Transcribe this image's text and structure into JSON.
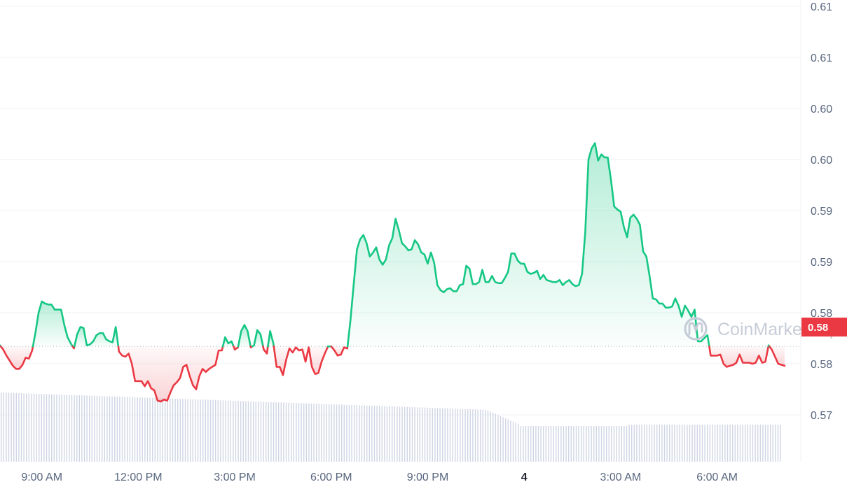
{
  "chart_data": {
    "type": "line",
    "baseline": 0.5817,
    "last_price_label": "0.58",
    "watermark": "CoinMarketCap",
    "y_ticks": [
      {
        "value": 0.615,
        "label": "0.61"
      },
      {
        "value": 0.61,
        "label": "0.61"
      },
      {
        "value": 0.605,
        "label": "0.60"
      },
      {
        "value": 0.6,
        "label": "0.60"
      },
      {
        "value": 0.595,
        "label": "0.59"
      },
      {
        "value": 0.59,
        "label": "0.59"
      },
      {
        "value": 0.585,
        "label": "0.58"
      },
      {
        "value": 0.58,
        "label": "0.58"
      },
      {
        "value": 0.575,
        "label": "0.57"
      }
    ],
    "x_ticks": [
      {
        "t": 1.1,
        "label": "9:00 AM",
        "bold": false
      },
      {
        "t": 4.1,
        "label": "12:00 PM",
        "bold": false
      },
      {
        "t": 7.1,
        "label": "3:00 PM",
        "bold": false
      },
      {
        "t": 10.1,
        "label": "6:00 PM",
        "bold": false
      },
      {
        "t": 13.1,
        "label": "9:00 PM",
        "bold": false
      },
      {
        "t": 16.1,
        "label": "4",
        "bold": true
      },
      {
        "t": 19.1,
        "label": "3:00 AM",
        "bold": false
      },
      {
        "t": 22.1,
        "label": "6:00 AM",
        "bold": false
      }
    ],
    "x_range": [
      -0.2,
      24.2
    ],
    "y_range": [
      0.5722,
      0.6158
    ],
    "series": [
      {
        "values": [
          [
            -0.2,
            0.5818
          ],
          [
            -0.1,
            0.5814
          ],
          [
            0.0,
            0.5808
          ],
          [
            0.1,
            0.5803
          ],
          [
            0.2,
            0.5798
          ],
          [
            0.3,
            0.5795
          ],
          [
            0.4,
            0.5795
          ],
          [
            0.5,
            0.5799
          ],
          [
            0.6,
            0.5806
          ],
          [
            0.7,
            0.5805
          ],
          [
            0.8,
            0.5813
          ],
          [
            0.9,
            0.583
          ],
          [
            1.0,
            0.585
          ],
          [
            1.1,
            0.5861
          ],
          [
            1.2,
            0.5859
          ],
          [
            1.3,
            0.5858
          ],
          [
            1.4,
            0.5858
          ],
          [
            1.5,
            0.5853
          ],
          [
            1.6,
            0.5853
          ],
          [
            1.7,
            0.5853
          ],
          [
            1.8,
            0.5838
          ],
          [
            1.9,
            0.5826
          ],
          [
            2.0,
            0.582
          ],
          [
            2.1,
            0.5815
          ],
          [
            2.2,
            0.5829
          ],
          [
            2.3,
            0.5836
          ],
          [
            2.4,
            0.5835
          ],
          [
            2.5,
            0.5818
          ],
          [
            2.6,
            0.5819
          ],
          [
            2.7,
            0.5822
          ],
          [
            2.8,
            0.5828
          ],
          [
            2.9,
            0.583
          ],
          [
            3.0,
            0.583
          ],
          [
            3.1,
            0.5824
          ],
          [
            3.2,
            0.5822
          ],
          [
            3.3,
            0.5821
          ],
          [
            3.4,
            0.5836
          ],
          [
            3.5,
            0.5812
          ],
          [
            3.6,
            0.5808
          ],
          [
            3.7,
            0.5807
          ],
          [
            3.8,
            0.581
          ],
          [
            3.9,
            0.58
          ],
          [
            4.0,
            0.5783
          ],
          [
            4.1,
            0.5783
          ],
          [
            4.2,
            0.5783
          ],
          [
            4.3,
            0.5778
          ],
          [
            4.4,
            0.5783
          ],
          [
            4.5,
            0.5776
          ],
          [
            4.6,
            0.5774
          ],
          [
            4.7,
            0.5764
          ],
          [
            4.8,
            0.5763
          ],
          [
            4.9,
            0.5765
          ],
          [
            5.0,
            0.5764
          ],
          [
            5.1,
            0.5772
          ],
          [
            5.2,
            0.5779
          ],
          [
            5.3,
            0.5782
          ],
          [
            5.4,
            0.5786
          ],
          [
            5.5,
            0.5797
          ],
          [
            5.6,
            0.5799
          ],
          [
            5.7,
            0.5788
          ],
          [
            5.8,
            0.5779
          ],
          [
            5.9,
            0.5775
          ],
          [
            6.0,
            0.5788
          ],
          [
            6.1,
            0.5795
          ],
          [
            6.2,
            0.5792
          ],
          [
            6.3,
            0.5795
          ],
          [
            6.4,
            0.5797
          ],
          [
            6.5,
            0.5799
          ],
          [
            6.6,
            0.5813
          ],
          [
            6.7,
            0.5813
          ],
          [
            6.8,
            0.5826
          ],
          [
            6.9,
            0.582
          ],
          [
            7.0,
            0.5822
          ],
          [
            7.1,
            0.5814
          ],
          [
            7.2,
            0.5816
          ],
          [
            7.3,
            0.5832
          ],
          [
            7.4,
            0.5838
          ],
          [
            7.5,
            0.5832
          ],
          [
            7.6,
            0.5816
          ],
          [
            7.7,
            0.5818
          ],
          [
            7.8,
            0.5833
          ],
          [
            7.9,
            0.5829
          ],
          [
            8.0,
            0.5814
          ],
          [
            8.1,
            0.581
          ],
          [
            8.2,
            0.5832
          ],
          [
            8.3,
            0.582
          ],
          [
            8.4,
            0.5797
          ],
          [
            8.5,
            0.5797
          ],
          [
            8.6,
            0.5789
          ],
          [
            8.7,
            0.5804
          ],
          [
            8.8,
            0.5815
          ],
          [
            8.9,
            0.5811
          ],
          [
            9.0,
            0.5816
          ],
          [
            9.1,
            0.5813
          ],
          [
            9.2,
            0.5814
          ],
          [
            9.3,
            0.5802
          ],
          [
            9.4,
            0.5816
          ],
          [
            9.5,
            0.5797
          ],
          [
            9.6,
            0.579
          ],
          [
            9.7,
            0.5791
          ],
          [
            9.8,
            0.5802
          ],
          [
            9.9,
            0.581
          ],
          [
            10.0,
            0.5817
          ],
          [
            10.1,
            0.5817
          ],
          [
            10.2,
            0.5813
          ],
          [
            10.3,
            0.5808
          ],
          [
            10.4,
            0.5809
          ],
          [
            10.5,
            0.5816
          ],
          [
            10.6,
            0.5815
          ],
          [
            10.7,
            0.5843
          ],
          [
            10.8,
            0.5878
          ],
          [
            10.9,
            0.5912
          ],
          [
            11.0,
            0.5922
          ],
          [
            11.1,
            0.5926
          ],
          [
            11.2,
            0.5918
          ],
          [
            11.3,
            0.5905
          ],
          [
            11.4,
            0.5909
          ],
          [
            11.5,
            0.5914
          ],
          [
            11.6,
            0.5902
          ],
          [
            11.7,
            0.5897
          ],
          [
            11.8,
            0.5902
          ],
          [
            11.9,
            0.5916
          ],
          [
            12.0,
            0.5923
          ],
          [
            12.1,
            0.5942
          ],
          [
            12.2,
            0.5931
          ],
          [
            12.3,
            0.5918
          ],
          [
            12.4,
            0.5915
          ],
          [
            12.5,
            0.5911
          ],
          [
            12.6,
            0.5912
          ],
          [
            12.7,
            0.5921
          ],
          [
            12.8,
            0.5917
          ],
          [
            12.9,
            0.5909
          ],
          [
            13.0,
            0.5907
          ],
          [
            13.1,
            0.5898
          ],
          [
            13.2,
            0.5909
          ],
          [
            13.3,
            0.5899
          ],
          [
            13.4,
            0.5877
          ],
          [
            13.5,
            0.5872
          ],
          [
            13.6,
            0.587
          ],
          [
            13.7,
            0.5873
          ],
          [
            13.8,
            0.5874
          ],
          [
            13.9,
            0.5871
          ],
          [
            14.0,
            0.5871
          ],
          [
            14.1,
            0.5877
          ],
          [
            14.2,
            0.5878
          ],
          [
            14.3,
            0.5896
          ],
          [
            14.4,
            0.5893
          ],
          [
            14.5,
            0.5878
          ],
          [
            14.6,
            0.5878
          ],
          [
            14.7,
            0.588
          ],
          [
            14.8,
            0.5892
          ],
          [
            14.9,
            0.588
          ],
          [
            15.0,
            0.588
          ],
          [
            15.1,
            0.5886
          ],
          [
            15.2,
            0.588
          ],
          [
            15.3,
            0.5879
          ],
          [
            15.4,
            0.5879
          ],
          [
            15.5,
            0.5884
          ],
          [
            15.6,
            0.589
          ],
          [
            15.7,
            0.5908
          ],
          [
            15.8,
            0.5908
          ],
          [
            15.9,
            0.5901
          ],
          [
            16.0,
            0.5898
          ],
          [
            16.1,
            0.5898
          ],
          [
            16.2,
            0.589
          ],
          [
            16.3,
            0.5888
          ],
          [
            16.4,
            0.5889
          ],
          [
            16.5,
            0.5891
          ],
          [
            16.6,
            0.5883
          ],
          [
            16.7,
            0.5887
          ],
          [
            16.8,
            0.5882
          ],
          [
            16.9,
            0.5881
          ],
          [
            17.0,
            0.588
          ],
          [
            17.1,
            0.588
          ],
          [
            17.2,
            0.5882
          ],
          [
            17.3,
            0.5877
          ],
          [
            17.4,
            0.588
          ],
          [
            17.5,
            0.5882
          ],
          [
            17.6,
            0.5878
          ],
          [
            17.7,
            0.5876
          ],
          [
            17.8,
            0.5877
          ],
          [
            17.9,
            0.5888
          ],
          [
            18.0,
            0.5929
          ],
          [
            18.1,
            0.6
          ],
          [
            18.2,
            0.6011
          ],
          [
            18.3,
            0.6016
          ],
          [
            18.4,
            0.5999
          ],
          [
            18.5,
            0.6005
          ],
          [
            18.6,
            0.6002
          ],
          [
            18.7,
            0.6002
          ],
          [
            18.8,
            0.598
          ],
          [
            18.9,
            0.5954
          ],
          [
            19.0,
            0.5951
          ],
          [
            19.1,
            0.5949
          ],
          [
            19.2,
            0.5934
          ],
          [
            19.3,
            0.5924
          ],
          [
            19.4,
            0.5943
          ],
          [
            19.5,
            0.5946
          ],
          [
            19.6,
            0.5942
          ],
          [
            19.7,
            0.5936
          ],
          [
            19.8,
            0.591
          ],
          [
            19.9,
            0.5905
          ],
          [
            20.0,
            0.5886
          ],
          [
            20.1,
            0.5864
          ],
          [
            20.2,
            0.5863
          ],
          [
            20.3,
            0.5859
          ],
          [
            20.4,
            0.5859
          ],
          [
            20.5,
            0.5855
          ],
          [
            20.6,
            0.5855
          ],
          [
            20.7,
            0.5856
          ],
          [
            20.8,
            0.5864
          ],
          [
            20.9,
            0.5857
          ],
          [
            21.0,
            0.5846
          ],
          [
            21.1,
            0.5857
          ],
          [
            21.2,
            0.5852
          ],
          [
            21.3,
            0.5846
          ],
          [
            21.4,
            0.5853
          ],
          [
            21.5,
            0.5822
          ],
          [
            21.6,
            0.5822
          ],
          [
            21.7,
            0.5825
          ],
          [
            21.8,
            0.5828
          ],
          [
            21.9,
            0.5808
          ],
          [
            22.0,
            0.5808
          ],
          [
            22.1,
            0.5808
          ],
          [
            22.2,
            0.5809
          ],
          [
            22.3,
            0.58
          ],
          [
            22.4,
            0.5797
          ],
          [
            22.5,
            0.5798
          ],
          [
            22.6,
            0.5799
          ],
          [
            22.7,
            0.5801
          ],
          [
            22.8,
            0.5809
          ],
          [
            22.9,
            0.5801
          ],
          [
            23.0,
            0.5801
          ],
          [
            23.1,
            0.5801
          ],
          [
            23.2,
            0.58
          ],
          [
            23.3,
            0.5801
          ],
          [
            23.4,
            0.5808
          ],
          [
            23.5,
            0.5801
          ],
          [
            23.6,
            0.5802
          ],
          [
            23.7,
            0.5818
          ],
          [
            23.8,
            0.5814
          ],
          [
            23.9,
            0.5807
          ],
          [
            24.0,
            0.58
          ],
          [
            24.1,
            0.5799
          ],
          [
            24.2,
            0.5798
          ]
        ]
      }
    ]
  },
  "colors": {
    "up": "#16c784",
    "down": "#ea3943",
    "grid": "#eff2f5",
    "volume": "#cfd6e4",
    "axis_text": "#58667e",
    "watermark": "#c7cdd8",
    "badge": "#ea3943"
  }
}
